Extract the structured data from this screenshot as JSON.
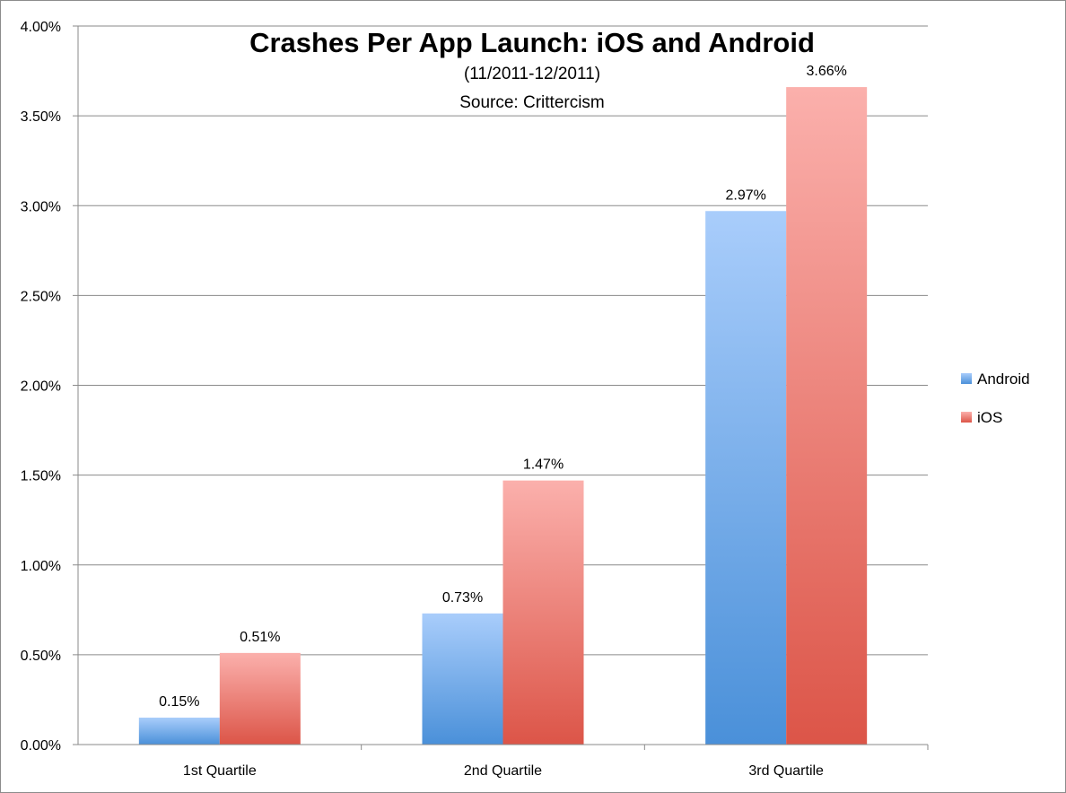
{
  "chart_data": {
    "type": "bar",
    "title": "Crashes Per App Launch: iOS and Android",
    "subtitle_lines": [
      "(11/2011-12/2011)",
      "Source: Crittercism"
    ],
    "categories": [
      "1st Quartile",
      "2nd Quartile",
      "3rd Quartile"
    ],
    "series": [
      {
        "name": "Android",
        "values": [
          0.15,
          0.73,
          2.97
        ],
        "labels": [
          "0.15%",
          "0.73%",
          "2.97%"
        ],
        "color_top": "#a9cdfb",
        "color_bottom": "#4a90d9"
      },
      {
        "name": "iOS",
        "values": [
          0.51,
          1.47,
          3.66
        ],
        "labels": [
          "0.51%",
          "1.47%",
          "3.66%"
        ],
        "color_top": "#fbb0ac",
        "color_bottom": "#dc5548"
      }
    ],
    "ylim": [
      0,
      4
    ],
    "yticks": [
      0,
      0.5,
      1,
      1.5,
      2,
      2.5,
      3,
      3.5,
      4
    ],
    "ytick_labels": [
      "0.00%",
      "0.50%",
      "1.00%",
      "1.50%",
      "2.00%",
      "2.50%",
      "3.00%",
      "3.50%",
      "4.00%"
    ],
    "grid": true,
    "legend_position": "right",
    "xlabel": "",
    "ylabel": ""
  }
}
